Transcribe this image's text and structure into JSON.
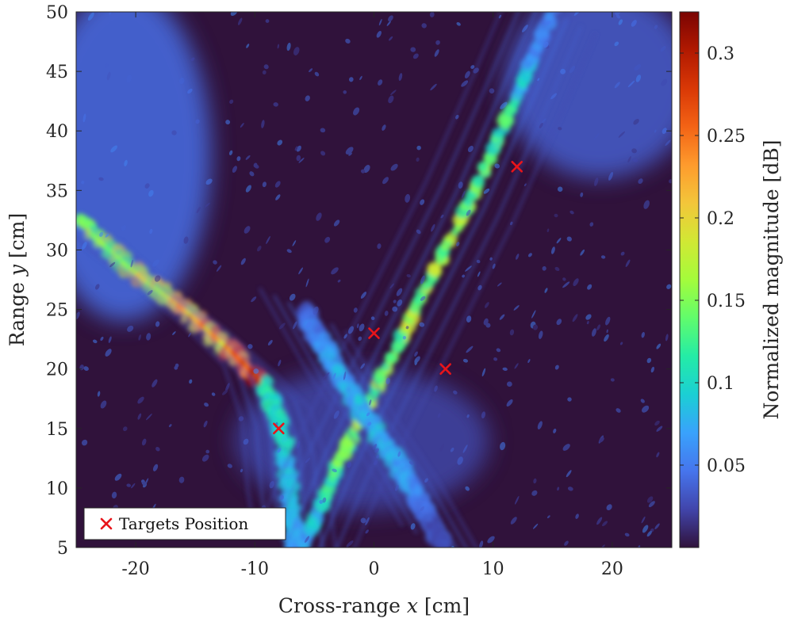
{
  "chart_data": {
    "type": "heatmap",
    "xlabel": "Cross-range x [cm]",
    "xlabel_parts": {
      "pre": "Cross-range ",
      "var": "x",
      "post": " [cm]"
    },
    "ylabel": "Range y [cm]",
    "ylabel_parts": {
      "pre": "Range ",
      "var": "y",
      "post": " [cm]"
    },
    "xlim": [
      -25,
      25
    ],
    "ylim": [
      5,
      50
    ],
    "xticks": [
      -20,
      -10,
      0,
      10,
      20
    ],
    "xtick_labels": [
      "-20",
      "-10",
      "0",
      "10",
      "20"
    ],
    "yticks": [
      5,
      10,
      15,
      20,
      25,
      30,
      35,
      40,
      45,
      50
    ],
    "ytick_labels": [
      "5",
      "10",
      "15",
      "20",
      "25",
      "30",
      "35",
      "40",
      "45",
      "50"
    ],
    "colorbar": {
      "label": "Normalized magnitude [dB]",
      "range": [
        0,
        0.325
      ],
      "ticks": [
        0.05,
        0.1,
        0.15,
        0.2,
        0.25,
        0.3
      ],
      "tick_labels": [
        "0.05",
        "0.1",
        "0.15",
        "0.2",
        "0.25",
        "0.3"
      ],
      "colormap": "turbo",
      "colors": [
        "#30123b",
        "#4145ab",
        "#4675ed",
        "#39a2fc",
        "#1bcfd4",
        "#24eca6",
        "#61fc6c",
        "#a4fc3b",
        "#d1e834",
        "#f3c63a",
        "#fe9b2d",
        "#f36315",
        "#d93806",
        "#b11901",
        "#7a0402"
      ]
    },
    "intensity_ridges": [
      {
        "name": "left-arc",
        "points": [
          [
            -25,
            32.5
          ],
          [
            -20,
            28
          ],
          [
            -16,
            25
          ],
          [
            -12,
            21.5
          ],
          [
            -9,
            18.5
          ],
          [
            -7.5,
            14
          ],
          [
            -7,
            8
          ],
          [
            -6.5,
            5
          ]
        ],
        "peak": 0.31
      },
      {
        "name": "right-diagonal",
        "points": [
          [
            -6,
            5
          ],
          [
            -3,
            12
          ],
          [
            0,
            18
          ],
          [
            4,
            26
          ],
          [
            8,
            34
          ],
          [
            12,
            43
          ],
          [
            15,
            50
          ]
        ],
        "peak": 0.2
      },
      {
        "name": "crossing-band",
        "points": [
          [
            -6,
            25
          ],
          [
            -2,
            18
          ],
          [
            2,
            12
          ],
          [
            6,
            5
          ]
        ],
        "peak": 0.1
      }
    ],
    "series": [
      {
        "name": "Targets Position",
        "marker": "x",
        "color": "#e8141a",
        "x": [
          -8,
          0,
          6,
          12
        ],
        "y": [
          15,
          23,
          20,
          37
        ]
      }
    ],
    "legend": {
      "position": "bottom-left",
      "entries": [
        "Targets Position"
      ]
    },
    "grid": false
  }
}
